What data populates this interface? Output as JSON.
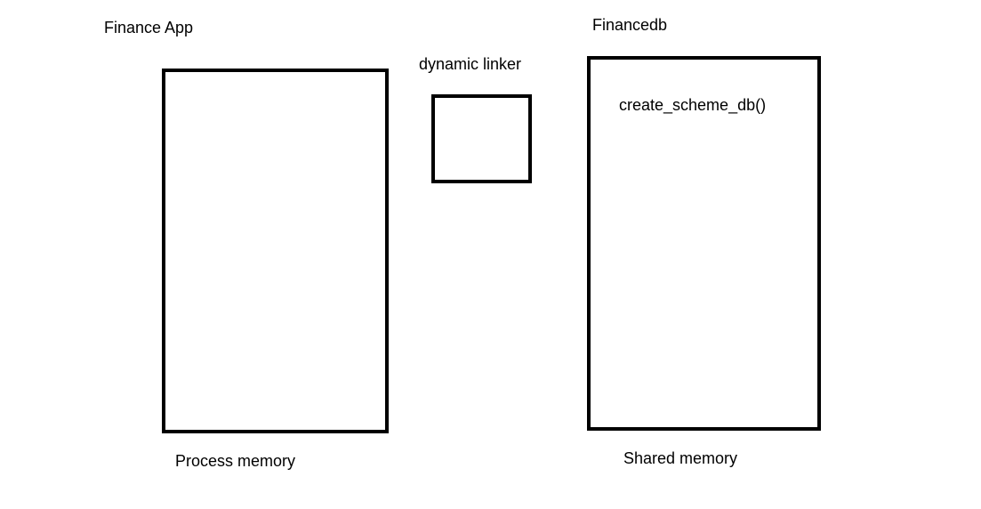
{
  "components": {
    "finance_app": {
      "title": "Finance App",
      "memory_label": "Process memory"
    },
    "dynamic_linker": {
      "title": "dynamic linker"
    },
    "financedb": {
      "title": "Financedb",
      "memory_label": "Shared memory",
      "function": "create_scheme_db()"
    }
  }
}
